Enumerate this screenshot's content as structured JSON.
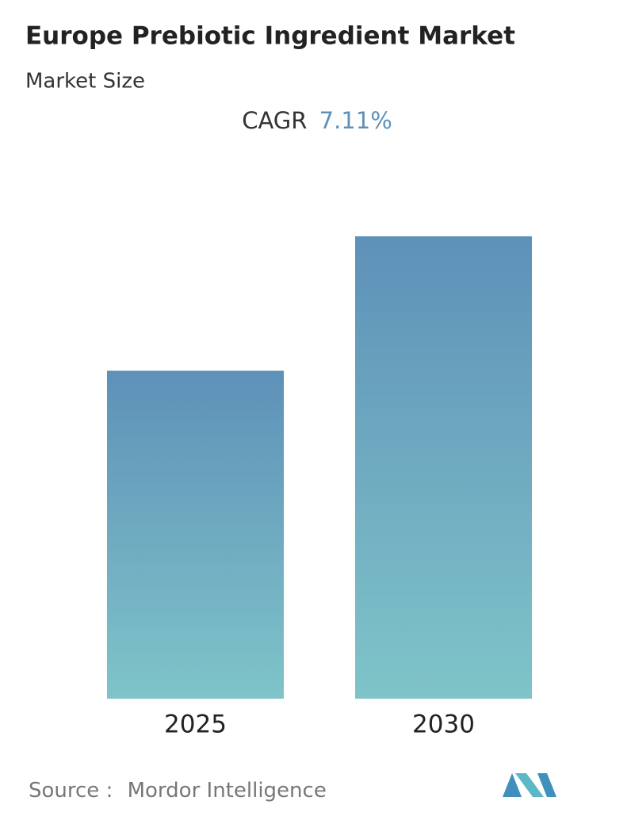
{
  "chart_data": {
    "type": "bar",
    "title": "Europe Prebiotic Ingredient Market",
    "subtitle": "Market Size",
    "cagr": {
      "label": "CAGR",
      "value": 7.11,
      "value_label": "7.11%"
    },
    "categories": [
      "2025",
      "2030"
    ],
    "values": [
      100,
      141
    ],
    "ylim": [
      0,
      141
    ],
    "color": "#5e91b8",
    "color_end": "#7fc4c9",
    "source": {
      "label": "Source :",
      "name": "Mordor Intelligence"
    }
  }
}
